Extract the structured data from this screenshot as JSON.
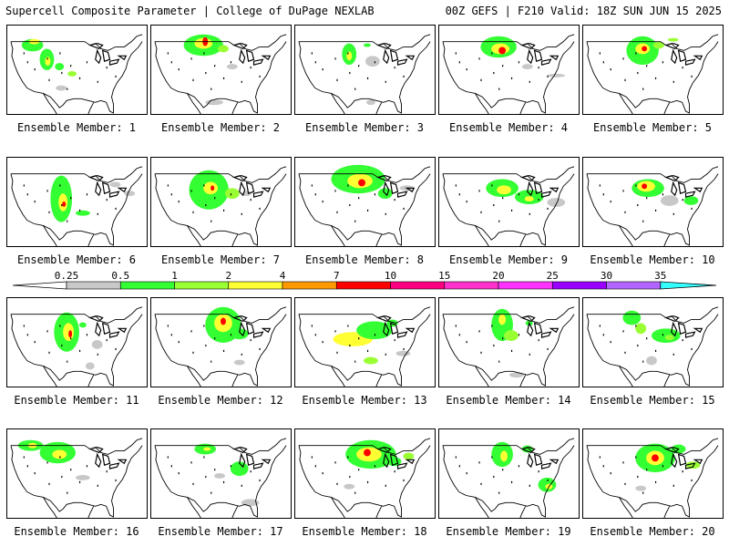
{
  "header": {
    "title": "Supercell Composite Parameter | College of DuPage NEXLAB",
    "run_info": "00Z GEFS | F210 Valid: 18Z SUN JUN 15 2025"
  },
  "legend": {
    "ticks": [
      "0.25",
      "0.5",
      "1",
      "2",
      "4",
      "7",
      "10",
      "15",
      "20",
      "25",
      "30",
      "35"
    ],
    "colors": [
      "#c8c8c8",
      "#33ff33",
      "#99ff33",
      "#ffff33",
      "#ff9900",
      "#ff0000",
      "#ff0080",
      "#ff33cc",
      "#ff33ff",
      "#9900ff",
      "#b366ff",
      "#33ffff"
    ]
  },
  "panels": [
    {
      "label": "Ensemble Member: 1"
    },
    {
      "label": "Ensemble Member: 2"
    },
    {
      "label": "Ensemble Member: 3"
    },
    {
      "label": "Ensemble Member: 4"
    },
    {
      "label": "Ensemble Member: 5"
    },
    {
      "label": "Ensemble Member: 6"
    },
    {
      "label": "Ensemble Member: 7"
    },
    {
      "label": "Ensemble Member: 8"
    },
    {
      "label": "Ensemble Member: 9"
    },
    {
      "label": "Ensemble Member: 10"
    },
    {
      "label": "Ensemble Member: 11"
    },
    {
      "label": "Ensemble Member: 12"
    },
    {
      "label": "Ensemble Member: 13"
    },
    {
      "label": "Ensemble Member: 14"
    },
    {
      "label": "Ensemble Member: 15"
    },
    {
      "label": "Ensemble Member: 16"
    },
    {
      "label": "Ensemble Member: 17"
    },
    {
      "label": "Ensemble Member: 18"
    },
    {
      "label": "Ensemble Member: 19"
    },
    {
      "label": "Ensemble Member: 20"
    }
  ]
}
